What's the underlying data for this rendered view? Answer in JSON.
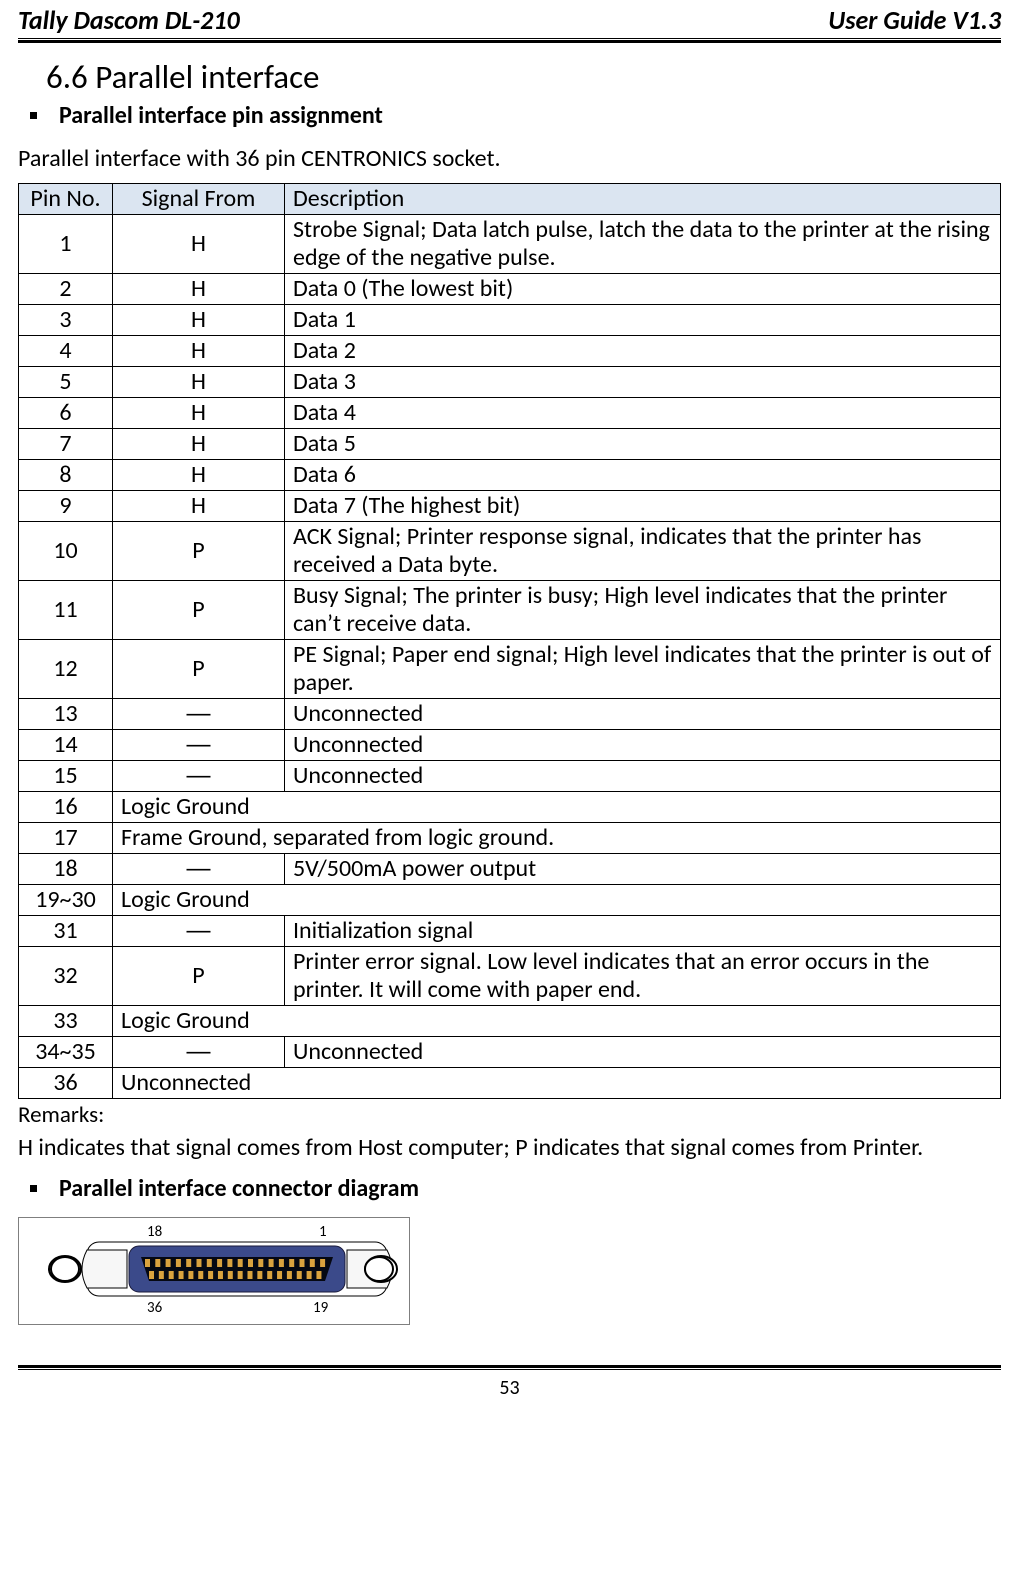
{
  "header": {
    "left": "Tally Dascom DL-210",
    "right": "User Guide V1.3"
  },
  "section": {
    "number_title": "6.6 Parallel interface",
    "bullet1": "Parallel interface pin assignment",
    "intro": "Parallel interface with 36 pin CENTRONICS socket.",
    "bullet2": "Parallel interface connector diagram"
  },
  "table": {
    "headers": {
      "pin": "Pin No.",
      "signal": "Signal From",
      "desc": "Description"
    },
    "rows": [
      {
        "pin": "1",
        "signal": "H",
        "desc": "Strobe Signal; Data latch pulse, latch the data to the printer at the rising edge of the negative pulse.",
        "multi": true
      },
      {
        "pin": "2",
        "signal": "H",
        "desc": "Data 0 (The lowest bit)"
      },
      {
        "pin": "3",
        "signal": "H",
        "desc": "Data 1"
      },
      {
        "pin": "4",
        "signal": "H",
        "desc": "Data 2"
      },
      {
        "pin": "5",
        "signal": "H",
        "desc": "Data 3"
      },
      {
        "pin": "6",
        "signal": "H",
        "desc": "Data 4"
      },
      {
        "pin": "7",
        "signal": "H",
        "desc": "Data 5"
      },
      {
        "pin": "8",
        "signal": "H",
        "desc": "Data 6"
      },
      {
        "pin": "9",
        "signal": "H",
        "desc": "Data 7 (The highest bit)"
      },
      {
        "pin": "10",
        "signal": "P",
        "desc": "ACK Signal; Printer response signal, indicates that the printer has received a Data byte.",
        "multi": true
      },
      {
        "pin": "11",
        "signal": "P",
        "desc": "Busy Signal; The printer is busy; High level indicates that the printer can’t receive data.",
        "multi": true
      },
      {
        "pin": "12",
        "signal": "P",
        "desc": "PE Signal; Paper end signal; High level indicates that the printer is out of paper.",
        "multi": true
      },
      {
        "pin": "13",
        "signal": "—",
        "desc": "Unconnected"
      },
      {
        "pin": "14",
        "signal": "—",
        "desc": "Unconnected"
      },
      {
        "pin": "15",
        "signal": "—",
        "desc": "Unconnected"
      },
      {
        "pin": "16",
        "span": true,
        "desc": "Logic Ground"
      },
      {
        "pin": "17",
        "span": true,
        "desc": "Frame Ground, separated from logic ground."
      },
      {
        "pin": "18",
        "signal": "—",
        "desc": "5V/500mA power output"
      },
      {
        "pin": "19~30",
        "span": true,
        "desc": "Logic Ground"
      },
      {
        "pin": "31",
        "signal": "—",
        "desc": "Initialization signal"
      },
      {
        "pin": "32",
        "signal": "P",
        "desc": "Printer error signal. Low level indicates that an error occurs in the printer. It will come with paper end.",
        "multi": true
      },
      {
        "pin": "33",
        "span": true,
        "desc": "Logic Ground"
      },
      {
        "pin": "34~35",
        "signal": "—",
        "desc": "Unconnected"
      },
      {
        "pin": "36",
        "span": true,
        "desc": "Unconnected"
      }
    ]
  },
  "remarks": {
    "label": "Remarks:",
    "body": "H indicates that signal comes from Host computer; P indicates that signal comes from Printer."
  },
  "connector": {
    "labels": {
      "tl": "18",
      "tr": "1",
      "bl": "36",
      "br": "19"
    },
    "colors": {
      "outer_stroke": "#000000",
      "body_fill": "#3b4a8a",
      "body_stroke": "#1a1a3a",
      "pin_fill": "#d9a23e",
      "slot_fill": "#050812",
      "side_fill": "#f7f7f7",
      "side_stroke": "#000000"
    }
  },
  "footer": {
    "page": "53"
  }
}
